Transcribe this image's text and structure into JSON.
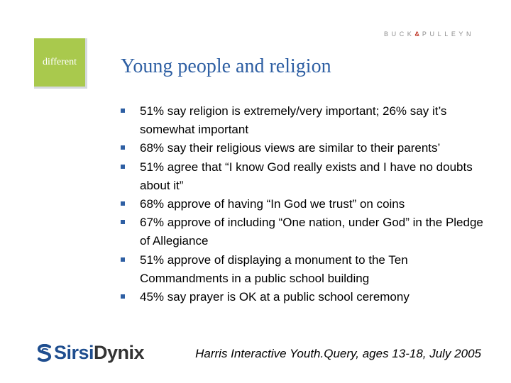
{
  "header": {
    "brand_part1": "BUCK",
    "brand_amp": "&",
    "brand_part2": "PULLEYN"
  },
  "logo": {
    "text": "different",
    "color": "#a9c94d"
  },
  "slide": {
    "title": "Young people and religion",
    "bullets": [
      "51% say religion is extremely/very important; 26% say it’s somewhat important",
      "68% say their religious views are similar to their parents’",
      "51% agree that “I know God really exists and I have no doubts about it”",
      "68% approve of having “In God we trust” on coins",
      "67% approve of including “One nation, under God” in the Pledge of Allegiance",
      "51% approve of displaying a monument to the Ten Commandments in a public school building",
      "45% say prayer is OK at a public school ceremony"
    ]
  },
  "footer": {
    "company_part1": "Sirsi",
    "company_part2": "Dynix",
    "source": "Harris Interactive Youth.Query, ages 13-18, July 2005"
  },
  "colors": {
    "title": "#2e5fa3",
    "bullet": "#2e5fa3",
    "accent_amp": "#c0392b"
  }
}
